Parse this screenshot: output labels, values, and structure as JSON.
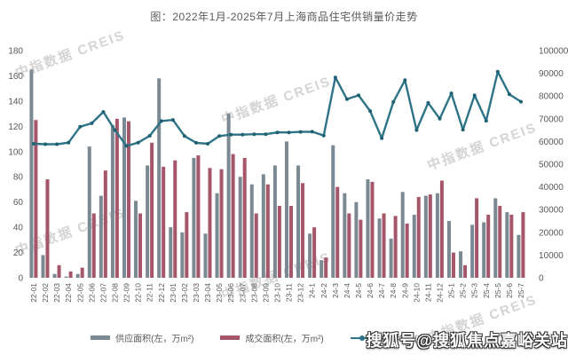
{
  "title": "图：2022年1月-2025年7月上海商品住宅供销量价走势",
  "watermark": {
    "text": "中指数据 CREIS"
  },
  "overlay_watermark": {
    "text": "搜狐号@搜狐焦点嘉峪关站"
  },
  "legend": {
    "items": [
      {
        "label": "供应面积(左，万m²)",
        "color": "#7b8a92",
        "type": "bar"
      },
      {
        "label": "成交面积(左，万m²)",
        "color": "#a5566a",
        "type": "bar"
      },
      {
        "label": "成交均价(右，元/m²)",
        "color": "#2e7486",
        "type": "line"
      }
    ]
  },
  "chart_data": {
    "type": "bar",
    "subtype": "grouped-bars-with-line",
    "title": "图：2022年1月-2025年7月上海商品住宅供销量价走势",
    "grid": false,
    "legend_position": "bottom",
    "categories": [
      "22-01",
      "22-02",
      "22-03",
      "22-04",
      "22-05",
      "22-06",
      "22-07",
      "22-08",
      "22-09",
      "22-10",
      "22-11",
      "22-12",
      "23-01",
      "23-02",
      "23-03",
      "23-04",
      "23-05",
      "23-06",
      "23-07",
      "23-08",
      "23-09",
      "23-10",
      "23-11",
      "23-12",
      "24-1",
      "24-2",
      "24-3",
      "24-4",
      "24-5",
      "24-6",
      "24-7",
      "24-8",
      "24-9",
      "24-10",
      "24-11",
      "24-12",
      "25-1",
      "25-2",
      "25-3",
      "25-4",
      "25-5",
      "25-6",
      "25-7"
    ],
    "series": [
      {
        "name": "供应面积(左，万m²)",
        "type": "bar",
        "axis": "left",
        "color": "#7b8a92",
        "values": [
          165,
          18,
          3,
          1,
          3,
          104,
          65,
          121,
          127,
          61,
          89,
          158,
          40,
          36,
          95,
          35,
          67,
          130,
          80,
          74,
          82,
          89,
          108,
          89,
          35,
          14,
          105,
          67,
          60,
          78,
          47,
          31,
          68,
          50,
          65,
          67,
          45,
          21,
          42,
          44,
          63,
          52,
          34
        ]
      },
      {
        "name": "成交面积(左，万m²)",
        "type": "bar",
        "axis": "left",
        "color": "#a5566a",
        "values": [
          125,
          78,
          10,
          5,
          8,
          51,
          85,
          126,
          124,
          51,
          107,
          88,
          93,
          52,
          97,
          87,
          86,
          98,
          95,
          51,
          74,
          57,
          57,
          75,
          40,
          16,
          72,
          51,
          46,
          76,
          51,
          49,
          43,
          64,
          66,
          77,
          20,
          10,
          63,
          50,
          57,
          50,
          52
        ]
      },
      {
        "name": "成交均价(右，元/m²)",
        "type": "line",
        "axis": "right",
        "color": "#2e7486",
        "marker_color": "#1e6173",
        "values": [
          59000,
          58800,
          58800,
          59500,
          66500,
          68000,
          73000,
          65000,
          58000,
          59500,
          62500,
          69000,
          69500,
          62400,
          59400,
          59000,
          62400,
          63000,
          63000,
          63200,
          63200,
          64000,
          64000,
          64200,
          64300,
          62600,
          88200,
          78600,
          80300,
          73400,
          61400,
          77400,
          87000,
          65000,
          77000,
          70000,
          81200,
          65200,
          80300,
          69100,
          90700,
          80800,
          77500
        ]
      }
    ],
    "left_axis": {
      "min": 0,
      "max": 180,
      "step": 20,
      "ticks": [
        0,
        20,
        40,
        60,
        80,
        100,
        120,
        140,
        160,
        180
      ]
    },
    "right_axis": {
      "min": 0,
      "max": 100000,
      "step": 10000,
      "ticks": [
        0,
        10000,
        20000,
        30000,
        40000,
        50000,
        60000,
        70000,
        80000,
        90000,
        100000
      ]
    },
    "axis_text_color": "#595959"
  }
}
